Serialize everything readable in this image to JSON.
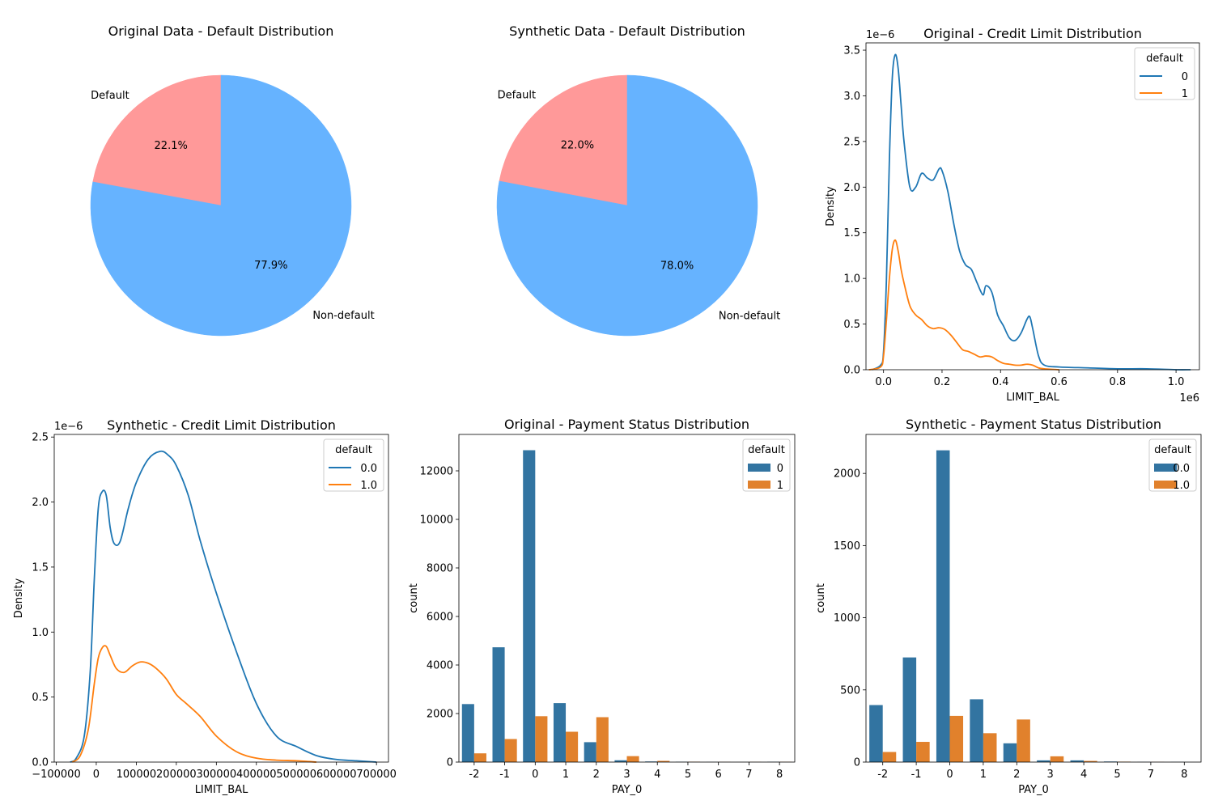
{
  "colors": {
    "pie_default": "#ff9999",
    "pie_nondefault": "#66b3ff",
    "series0": "#1f77b4",
    "series1": "#ff7f0e",
    "bar0": "#3274a1",
    "bar1": "#e1812c"
  },
  "chart_data": [
    {
      "type": "pie",
      "title": "Original Data - Default Distribution",
      "labels": [
        "Default",
        "Non-default"
      ],
      "values": [
        22.1,
        77.9
      ],
      "autopct": [
        "22.1%",
        "77.9%"
      ]
    },
    {
      "type": "pie",
      "title": "Synthetic Data - Default Distribution",
      "labels": [
        "Default",
        "Non-default"
      ],
      "values": [
        22.0,
        78.0
      ],
      "autopct": [
        "22.0%",
        "78.0%"
      ]
    },
    {
      "type": "line",
      "title": "Original - Credit Limit Distribution",
      "xlabel": "LIMIT_BAL",
      "ylabel": "Density",
      "x_offset_text": "1e6",
      "y_offset_text": "1e−6",
      "xlim": [
        -0.06,
        1.08
      ],
      "ylim": [
        0,
        3.58
      ],
      "xticks": [
        0.0,
        0.2,
        0.4,
        0.6,
        0.8,
        1.0
      ],
      "xtick_labels": [
        "0.0",
        "0.2",
        "0.4",
        "0.6",
        "0.8",
        "1.0"
      ],
      "yticks": [
        0.0,
        0.5,
        1.0,
        1.5,
        2.0,
        2.5,
        3.0,
        3.5
      ],
      "ytick_labels": [
        "0.0",
        "0.5",
        "1.0",
        "1.5",
        "2.0",
        "2.5",
        "3.0",
        "3.5"
      ],
      "legend_title": "default",
      "legend_position": "upper right",
      "series": [
        {
          "name": "0",
          "x": [
            -0.04,
            -0.01,
            0.0,
            0.01,
            0.02,
            0.03,
            0.04,
            0.05,
            0.06,
            0.07,
            0.09,
            0.11,
            0.13,
            0.15,
            0.17,
            0.19,
            0.2,
            0.22,
            0.24,
            0.26,
            0.28,
            0.3,
            0.32,
            0.34,
            0.35,
            0.37,
            0.39,
            0.41,
            0.43,
            0.45,
            0.47,
            0.49,
            0.5,
            0.51,
            0.53,
            0.55,
            0.6,
            0.7,
            0.8,
            0.9,
            1.0,
            1.05
          ],
          "y": [
            0.0,
            0.05,
            0.2,
            1.0,
            2.3,
            3.2,
            3.45,
            3.3,
            2.9,
            2.5,
            2.0,
            2.0,
            2.15,
            2.1,
            2.08,
            2.2,
            2.18,
            1.95,
            1.6,
            1.3,
            1.15,
            1.1,
            0.95,
            0.82,
            0.92,
            0.85,
            0.6,
            0.48,
            0.35,
            0.32,
            0.4,
            0.55,
            0.58,
            0.45,
            0.15,
            0.05,
            0.03,
            0.02,
            0.01,
            0.01,
            0.0,
            0.0
          ]
        },
        {
          "name": "1",
          "x": [
            -0.05,
            -0.01,
            0.0,
            0.01,
            0.02,
            0.03,
            0.04,
            0.05,
            0.06,
            0.07,
            0.09,
            0.11,
            0.13,
            0.15,
            0.17,
            0.19,
            0.21,
            0.23,
            0.25,
            0.27,
            0.29,
            0.31,
            0.33,
            0.35,
            0.37,
            0.39,
            0.41,
            0.43,
            0.45,
            0.47,
            0.49,
            0.51,
            0.53,
            0.55,
            0.6
          ],
          "y": [
            0.0,
            0.03,
            0.15,
            0.55,
            1.0,
            1.32,
            1.42,
            1.3,
            1.1,
            0.95,
            0.7,
            0.6,
            0.55,
            0.48,
            0.45,
            0.46,
            0.44,
            0.38,
            0.3,
            0.22,
            0.2,
            0.17,
            0.14,
            0.15,
            0.14,
            0.1,
            0.07,
            0.06,
            0.05,
            0.05,
            0.06,
            0.05,
            0.02,
            0.01,
            0.0
          ]
        }
      ]
    },
    {
      "type": "line",
      "title": "Synthetic - Credit Limit Distribution",
      "xlabel": "LIMIT_BAL",
      "ylabel": "Density",
      "y_offset_text": "1e−6",
      "xlim": [
        -105000,
        730000
      ],
      "ylim": [
        0,
        2.52
      ],
      "xticks": [
        -100000,
        0,
        100000,
        200000,
        300000,
        400000,
        500000,
        600000,
        700000
      ],
      "xtick_labels": [
        "−100000",
        "0",
        "100000",
        "200000",
        "300000",
        "400000",
        "500000",
        "600000",
        "700000"
      ],
      "yticks": [
        0.0,
        0.5,
        1.0,
        1.5,
        2.0,
        2.5
      ],
      "ytick_labels": [
        "0.0",
        "0.5",
        "1.0",
        "1.5",
        "2.0",
        "2.5"
      ],
      "legend_title": "default",
      "legend_position": "upper right",
      "series": [
        {
          "name": "0.0",
          "x": [
            -65000,
            -50000,
            -30000,
            -15000,
            -5000,
            5000,
            15000,
            25000,
            35000,
            45000,
            60000,
            80000,
            100000,
            130000,
            160000,
            180000,
            200000,
            230000,
            260000,
            300000,
            350000,
            400000,
            450000,
            500000,
            550000,
            600000,
            650000,
            700000
          ],
          "y": [
            0.0,
            0.03,
            0.2,
            0.7,
            1.4,
            1.95,
            2.08,
            2.05,
            1.8,
            1.68,
            1.7,
            1.95,
            2.15,
            2.33,
            2.39,
            2.36,
            2.28,
            2.05,
            1.7,
            1.3,
            0.85,
            0.45,
            0.2,
            0.12,
            0.05,
            0.02,
            0.01,
            0.0
          ]
        },
        {
          "name": "1.0",
          "x": [
            -60000,
            -40000,
            -20000,
            -5000,
            5000,
            15000,
            25000,
            35000,
            50000,
            70000,
            90000,
            110000,
            130000,
            150000,
            175000,
            200000,
            225000,
            260000,
            300000,
            350000,
            400000,
            450000,
            500000,
            550000
          ],
          "y": [
            0.0,
            0.05,
            0.25,
            0.6,
            0.8,
            0.88,
            0.89,
            0.82,
            0.72,
            0.69,
            0.74,
            0.77,
            0.76,
            0.72,
            0.64,
            0.52,
            0.45,
            0.35,
            0.2,
            0.08,
            0.03,
            0.015,
            0.01,
            0.0
          ]
        }
      ]
    },
    {
      "type": "bar",
      "title": "Original - Payment Status Distribution",
      "xlabel": "PAY_0",
      "ylabel": "count",
      "ylim": [
        0,
        13500
      ],
      "yticks": [
        0,
        2000,
        4000,
        6000,
        8000,
        10000,
        12000
      ],
      "ytick_labels": [
        "0",
        "2000",
        "4000",
        "6000",
        "8000",
        "10000",
        "12000"
      ],
      "categories": [
        "-2",
        "-1",
        "0",
        "1",
        "2",
        "3",
        "4",
        "5",
        "6",
        "7",
        "8"
      ],
      "legend_title": "default",
      "legend_position": "upper right",
      "series": [
        {
          "name": "0",
          "values": [
            2390,
            4730,
            12850,
            2430,
            820,
            75,
            25,
            12,
            5,
            2,
            12
          ]
        },
        {
          "name": "1",
          "values": [
            360,
            950,
            1890,
            1250,
            1850,
            245,
            50,
            15,
            6,
            7,
            10
          ]
        }
      ]
    },
    {
      "type": "bar",
      "title": "Synthetic - Payment Status Distribution",
      "xlabel": "PAY_0",
      "ylabel": "count",
      "ylim": [
        0,
        2270
      ],
      "yticks": [
        0,
        500,
        1000,
        1500,
        2000
      ],
      "ytick_labels": [
        "0",
        "500",
        "1000",
        "1500",
        "2000"
      ],
      "categories": [
        "-2",
        "-1",
        "0",
        "1",
        "2",
        "3",
        "4",
        "5",
        "7",
        "8"
      ],
      "legend_title": "default",
      "legend_position": "upper right",
      "series": [
        {
          "name": "0.0",
          "values": [
            395,
            725,
            2160,
            435,
            130,
            12,
            12,
            4,
            1,
            1
          ]
        },
        {
          "name": "1.0",
          "values": [
            70,
            140,
            320,
            200,
            295,
            40,
            8,
            3,
            1,
            0
          ]
        }
      ]
    }
  ]
}
